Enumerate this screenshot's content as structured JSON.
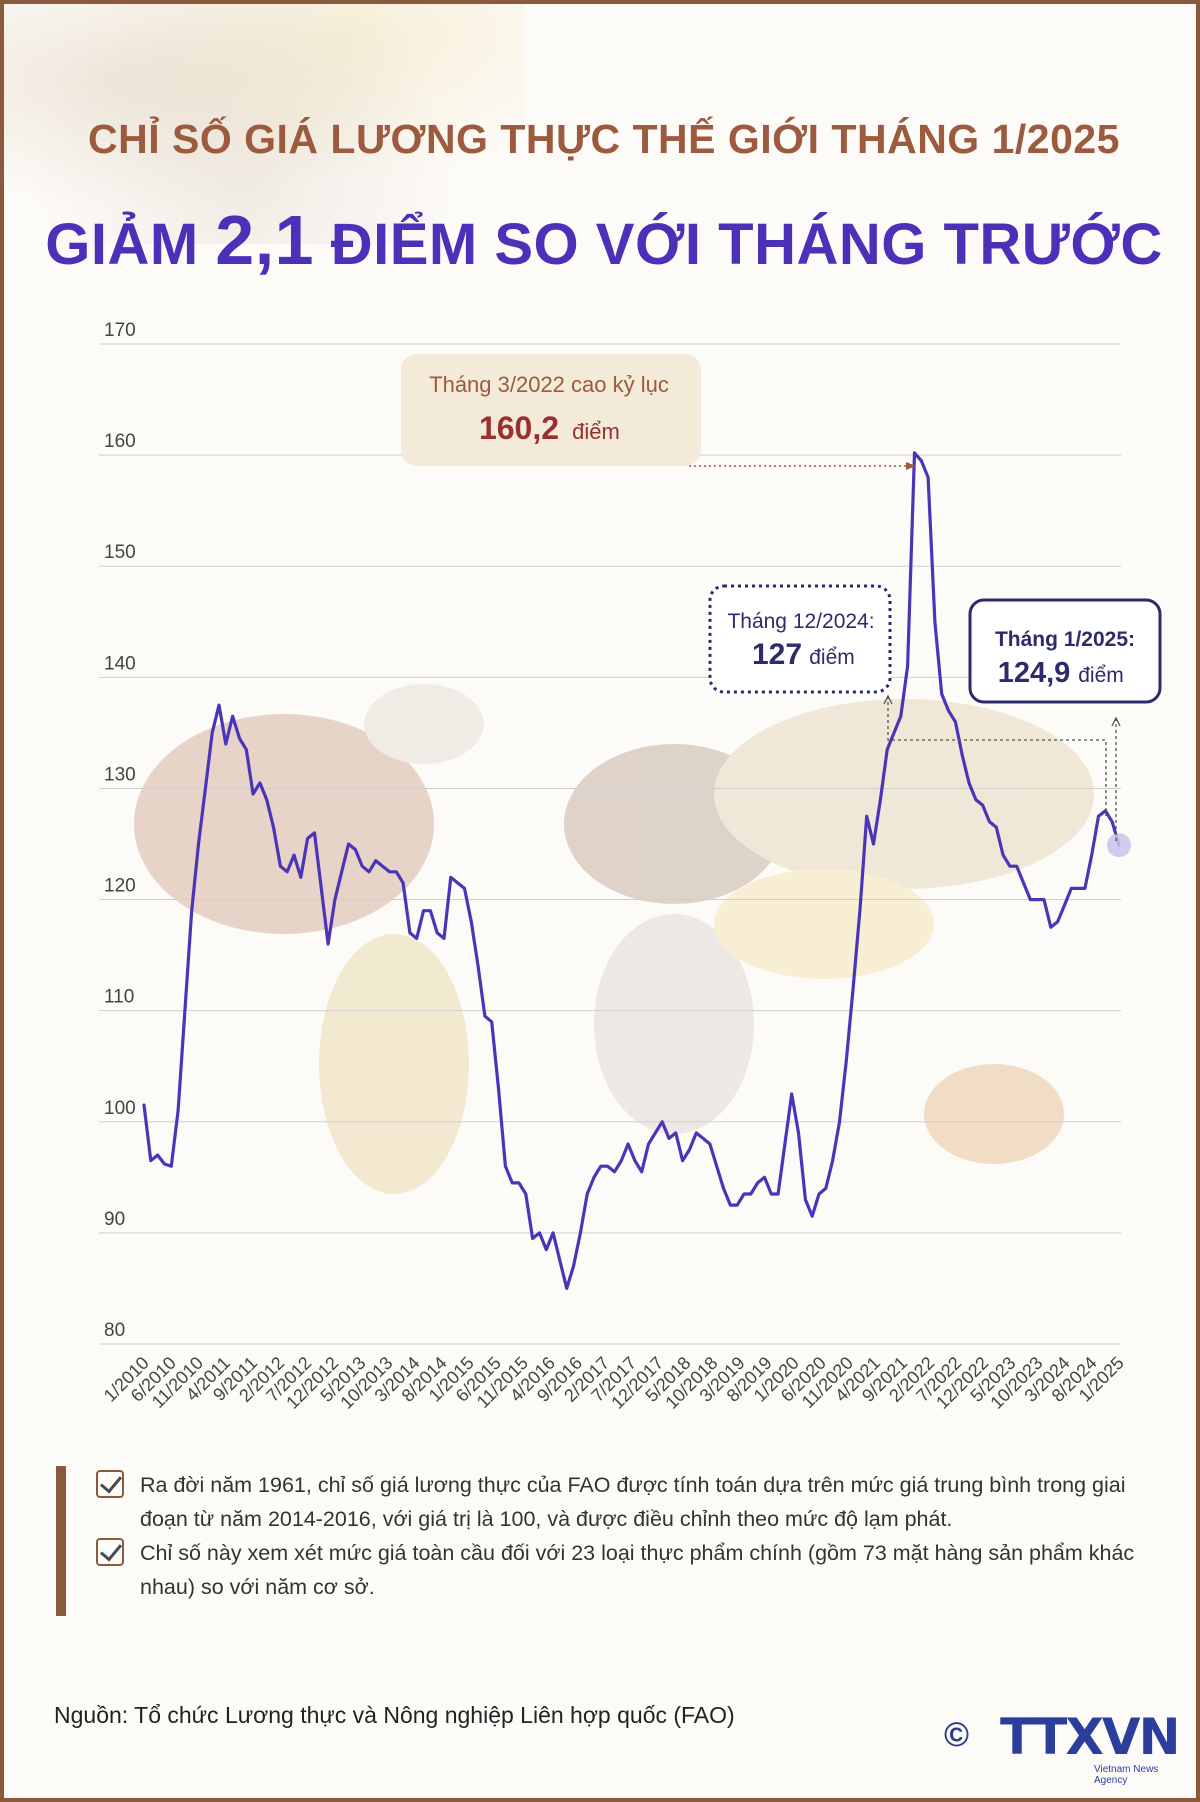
{
  "header": {
    "title_line1": "CHỈ SỐ GIÁ LƯƠNG THỰC THẾ GIỚI THÁNG 1/2025",
    "title_line2_pre": "GIẢM",
    "title_line2_num": "2,1",
    "title_line2_post": "ĐIỂM SO VỚI THÁNG TRƯỚC"
  },
  "colors": {
    "accent_brown": "#9c5a3e",
    "accent_purple": "#4b31b8",
    "line": "#4a35b8",
    "record_box": "#f4ead9",
    "record_value": "#9b2f2f"
  },
  "chart_data": {
    "type": "line",
    "ylim": [
      80,
      170
    ],
    "yticks": [
      80,
      90,
      100,
      110,
      120,
      130,
      140,
      150,
      160,
      170
    ],
    "grid": true,
    "xtick_labels": [
      "1/2010",
      "6/2010",
      "11/2010",
      "4/2011",
      "9/2011",
      "2/2012",
      "7/2012",
      "12/2012",
      "5/2013",
      "10/2013",
      "3/2014",
      "8/2014",
      "1/2015",
      "6/2015",
      "11/2015",
      "4/2016",
      "9/2016",
      "2/2017",
      "7/2017",
      "12/2017",
      "5/2018",
      "10/2018",
      "3/2019",
      "8/2019",
      "1/2020",
      "6/2020",
      "11/2020",
      "4/2021",
      "9/2021",
      "2/2022",
      "7/2022",
      "12/2022",
      "5/2023",
      "10/2023",
      "3/2024",
      "8/2024",
      "1/2025"
    ],
    "values": [
      101.5,
      96.5,
      97.0,
      96.2,
      96.0,
      101.0,
      110.0,
      119.0,
      125.0,
      130.0,
      135.0,
      137.5,
      134.0,
      136.5,
      134.5,
      133.5,
      129.5,
      130.5,
      129.0,
      126.5,
      123.0,
      122.5,
      124.0,
      122.0,
      125.5,
      126.0,
      121.0,
      116.0,
      120.0,
      122.5,
      125.0,
      124.5,
      123.0,
      122.5,
      123.5,
      123.0,
      122.5,
      122.5,
      121.5,
      117.0,
      116.5,
      119.0,
      119.0,
      117.0,
      116.5,
      122.0,
      121.5,
      121.0,
      118.0,
      114.0,
      109.5,
      109.0,
      103.0,
      96.0,
      94.5,
      94.5,
      93.5,
      89.5,
      90.0,
      88.5,
      90.0,
      87.5,
      85.0,
      87.0,
      90.0,
      93.5,
      95.0,
      96.0,
      96.0,
      95.5,
      96.5,
      98.0,
      96.5,
      95.5,
      98.0,
      99.0,
      100.0,
      98.5,
      99.0,
      96.5,
      97.5,
      99.0,
      98.5,
      98.0,
      96.0,
      94.0,
      92.5,
      92.5,
      93.5,
      93.5,
      94.5,
      95.0,
      93.5,
      93.5,
      98.0,
      102.5,
      99.0,
      93.0,
      91.5,
      93.5,
      94.0,
      96.5,
      100.0,
      105.5,
      112.0,
      119.0,
      127.5,
      125.0,
      129.0,
      133.5,
      135.0,
      136.5,
      141.0,
      160.2,
      159.5,
      158.0,
      145.0,
      138.5,
      137.0,
      136.0,
      133.0,
      130.5,
      129.0,
      128.5,
      127.0,
      126.5,
      124.0,
      123.0,
      123.0,
      121.5,
      120.0,
      120.0,
      120.0,
      117.5,
      118.0,
      119.5,
      121.0,
      121.0,
      121.0,
      124.0,
      127.5,
      128.0,
      127.0,
      124.9
    ]
  },
  "annotations": {
    "record": {
      "label": "Tháng 3/2022 cao kỷ lục",
      "value": "160,2",
      "unit": "điểm"
    },
    "dec2024": {
      "label": "Tháng 12/2024:",
      "value": "127",
      "unit": "điểm"
    },
    "jan2025": {
      "label": "Tháng 1/2025:",
      "value": "124,9",
      "unit": "điểm"
    }
  },
  "notes": [
    "Ra đời năm 1961, chỉ số giá lương thực của FAO được tính toán dựa trên mức giá trung bình trong giai đoạn từ năm 2014-2016, với giá trị là 100, và được điều chỉnh theo mức độ lạm phát.",
    "Chỉ số này xem xét mức giá toàn cầu đối với 23 loại thực phẩm chính (gồm 73 mặt hàng sản phẩm khác nhau) so với năm cơ sở."
  ],
  "source": "Nguồn: Tổ chức Lương thực và Nông nghiệp Liên hợp quốc (FAO)",
  "logo": {
    "brand": "TTXVN",
    "sub": "Vietnam News Agency",
    "copyright": "©"
  }
}
